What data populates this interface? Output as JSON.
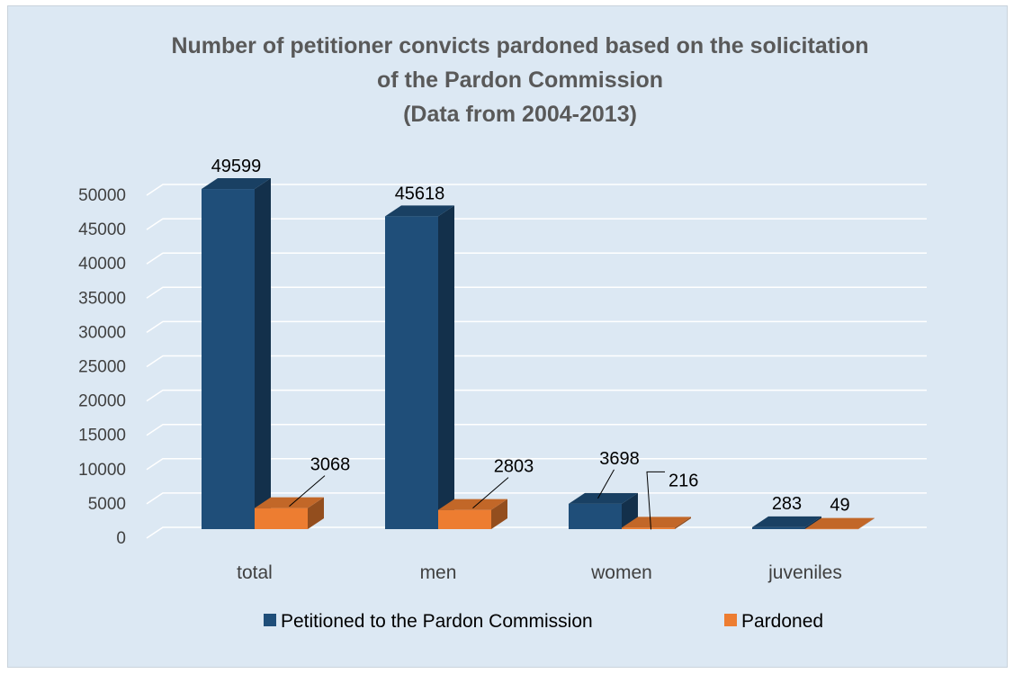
{
  "chart_data": {
    "type": "bar",
    "title": "Number of petitioner convicts pardoned based on the solicitation",
    "title_line2": "of the Pardon Commission",
    "subtitle": "(Data from 2004-2013)",
    "categories": [
      "total",
      "men",
      "women",
      "juveniles"
    ],
    "series": [
      {
        "name": "Petitioned to the Pardon Commission",
        "values": [
          49599,
          45618,
          3698,
          283
        ],
        "labels": [
          "49599",
          "45618",
          "3698",
          "283"
        ],
        "color": "#1f4e79"
      },
      {
        "name": "Pardoned",
        "values": [
          3068,
          2803,
          216,
          49
        ],
        "labels": [
          "3068",
          "2803",
          "216",
          "49"
        ],
        "color": "#ed7d31"
      }
    ],
    "ylim": [
      0,
      50000
    ],
    "yticks": [
      "0",
      "5000",
      "10000",
      "15000",
      "20000",
      "25000",
      "30000",
      "35000",
      "40000",
      "45000",
      "50000"
    ],
    "grid": true,
    "legend": "bottom",
    "style": "3d-column"
  },
  "colors": {
    "background": "#dce8f3",
    "gridline": "#ffffff",
    "title": "#595959"
  }
}
